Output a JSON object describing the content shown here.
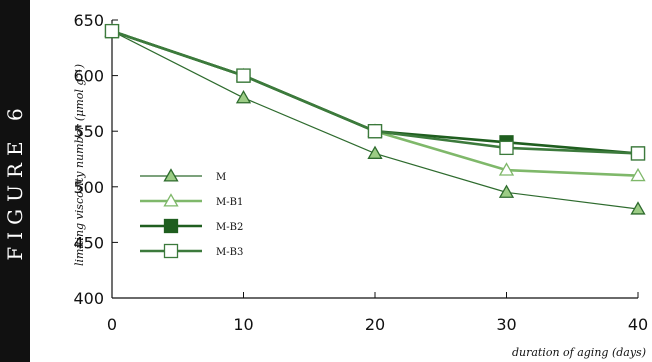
{
  "side_label": "FIGURE 6",
  "chart_data": {
    "type": "line",
    "title": "",
    "xlabel": "duration of aging (days)",
    "ylabel": "limiting viscosity number (μmol g⁻¹)",
    "x": [
      0,
      10,
      20,
      30,
      40
    ],
    "xlim": [
      0,
      40
    ],
    "ylim": [
      400,
      650
    ],
    "xticks": [
      "0",
      "10",
      "20",
      "30",
      "40"
    ],
    "yticks": [
      "400",
      "450",
      "500",
      "550",
      "600",
      "650"
    ],
    "grid": false,
    "legend_position": "left-middle",
    "series": [
      {
        "name": "M",
        "marker": "triangle-filled",
        "color": "#2e6b2e",
        "values": [
          640,
          580,
          530,
          495,
          480
        ]
      },
      {
        "name": "M-B1",
        "marker": "triangle-open",
        "color": "#7fb86a",
        "values": [
          640,
          600,
          550,
          515,
          510
        ]
      },
      {
        "name": "M-B2",
        "marker": "square-filled",
        "color": "#1f5e1f",
        "values": [
          640,
          600,
          550,
          540,
          530
        ]
      },
      {
        "name": "M-B3",
        "marker": "square-open",
        "color": "#3c7a3c",
        "values": [
          640,
          600,
          550,
          535,
          530
        ]
      }
    ]
  }
}
